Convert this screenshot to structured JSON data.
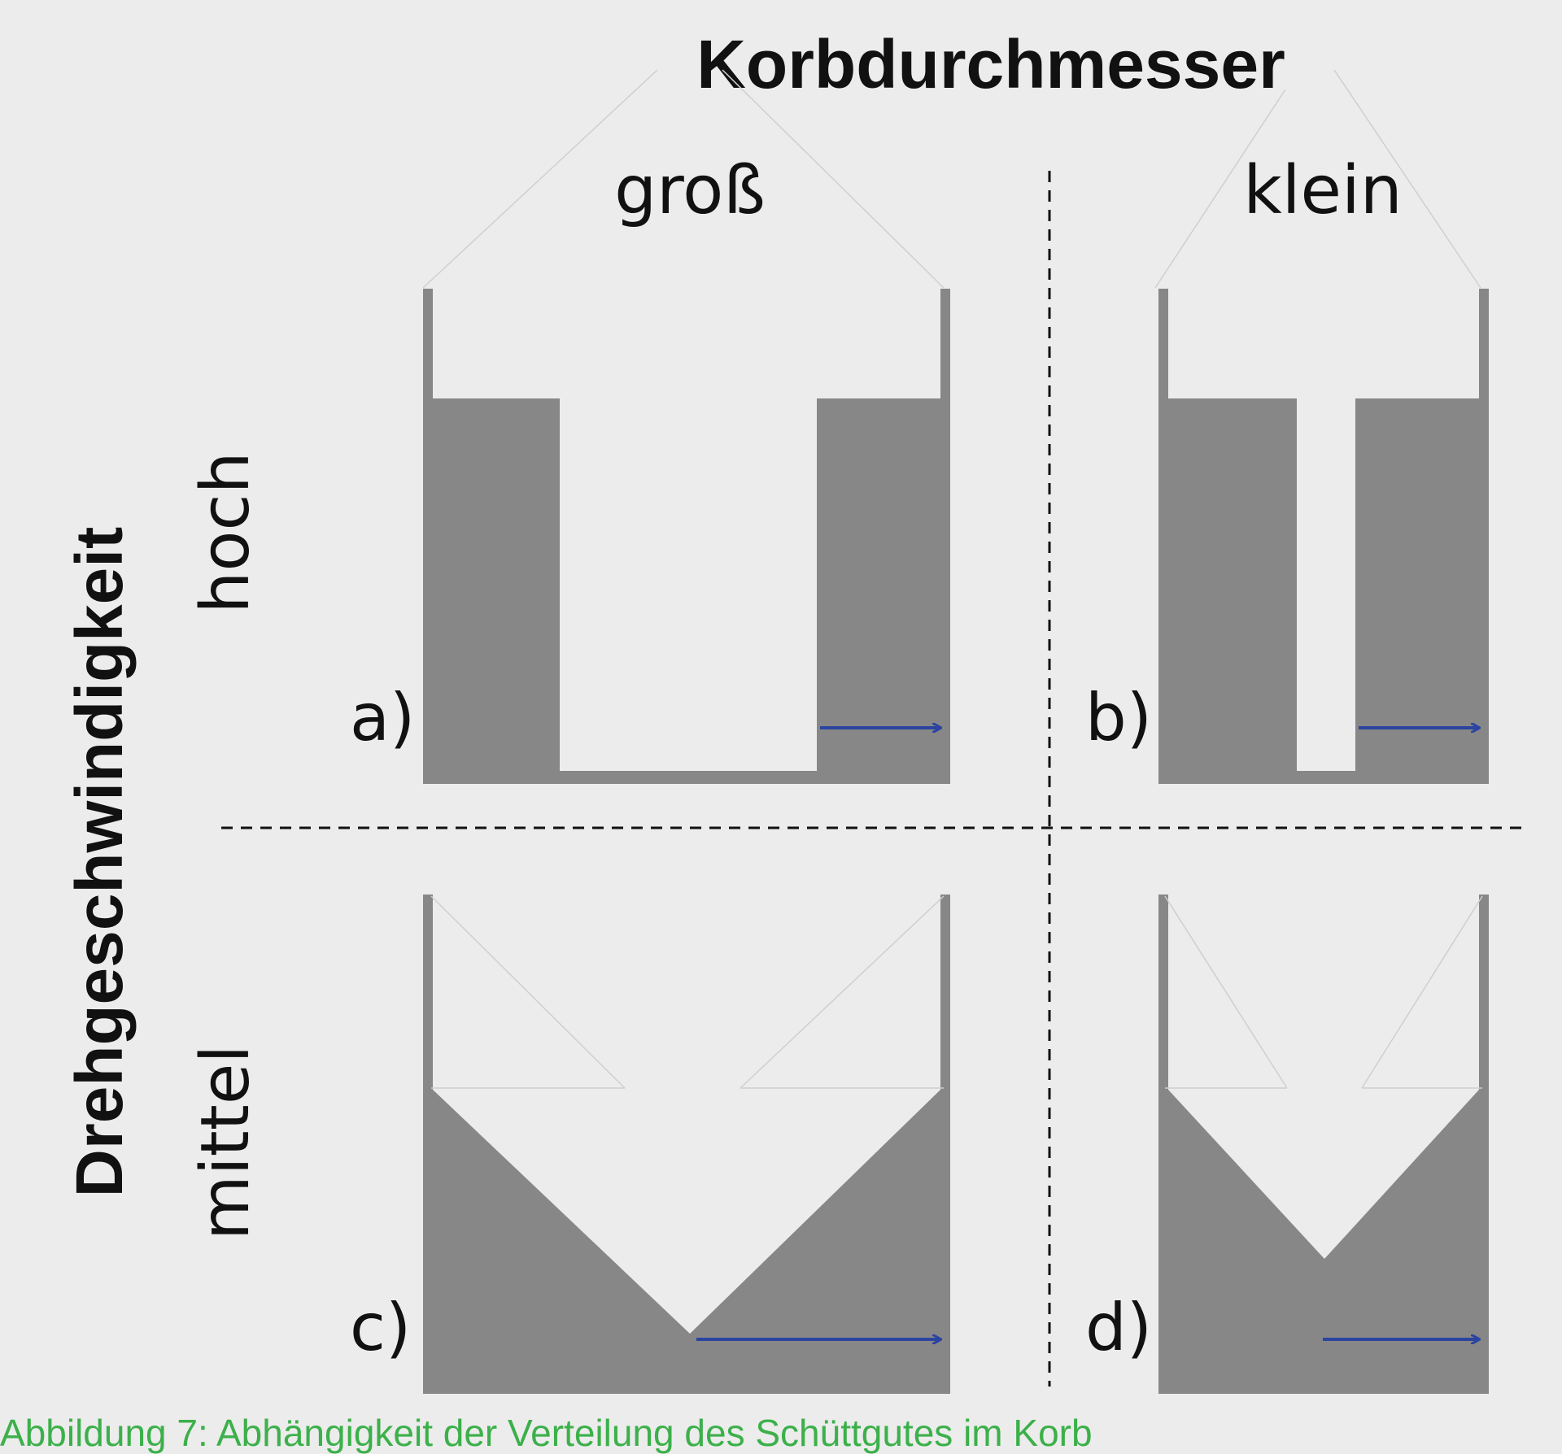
{
  "header": {
    "title": "Korbdurchmesser"
  },
  "columns": {
    "left": "groß",
    "right": "klein"
  },
  "axis": {
    "title": "Drehgeschwindigkeit",
    "top_row": "hoch",
    "bottom_row": "mittel"
  },
  "panels": {
    "a": "a)",
    "b": "b)",
    "c": "c)",
    "d": "d)"
  },
  "caption": "Abbildung 7: Abhängigkeit der Verteilung des Schüttgutes im Korb",
  "colors": {
    "background": "#ececec",
    "fill": "#878787",
    "arrow": "#2a44a0",
    "caption": "#3cb04a"
  }
}
